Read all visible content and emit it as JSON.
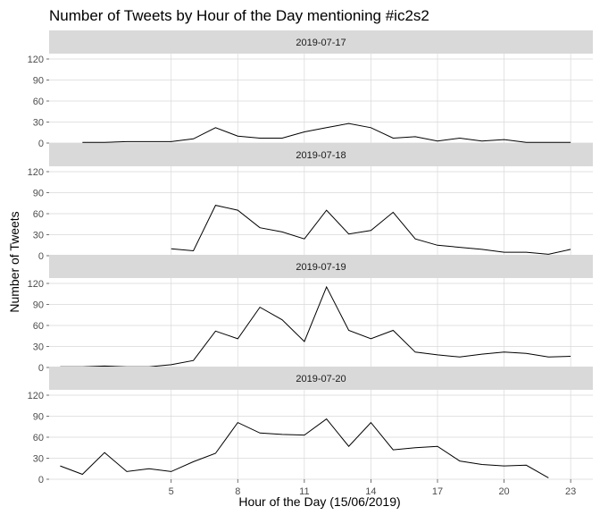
{
  "chart_data": {
    "type": "line",
    "title": "Number of Tweets by Hour of the Day mentioning #ic2s2",
    "xlabel": "Hour of the Day (15/06/2019)",
    "ylabel": "Number of Tweets",
    "xlim": [
      -0.5,
      24
    ],
    "ylim": [
      0,
      120
    ],
    "xticks": [
      5,
      8,
      11,
      14,
      17,
      20,
      23
    ],
    "yticks": [
      0,
      30,
      60,
      90,
      120
    ],
    "grid": true,
    "legend": "none",
    "panels": [
      {
        "label": "2019-07-17",
        "x": [
          1,
          2,
          3,
          4,
          5,
          6,
          7,
          8,
          9,
          10,
          11,
          12,
          13,
          14,
          15,
          16,
          17,
          18,
          19,
          20,
          21,
          22,
          23
        ],
        "y": [
          1,
          1,
          2,
          2,
          2,
          6,
          22,
          10,
          7,
          7,
          16,
          22,
          28,
          22,
          7,
          9,
          3,
          7,
          3,
          5,
          1,
          1,
          1
        ]
      },
      {
        "label": "2019-07-18",
        "x": [
          5,
          6,
          7,
          8,
          9,
          10,
          11,
          12,
          13,
          14,
          15,
          16,
          17,
          18,
          19,
          20,
          21,
          22,
          23
        ],
        "y": [
          10,
          7,
          72,
          65,
          40,
          34,
          24,
          65,
          31,
          36,
          62,
          24,
          15,
          12,
          9,
          5,
          5,
          2,
          9
        ]
      },
      {
        "label": "2019-07-19",
        "x": [
          0,
          1,
          2,
          3,
          4,
          5,
          6,
          7,
          8,
          9,
          10,
          11,
          12,
          13,
          14,
          15,
          16,
          17,
          18,
          19,
          20,
          21,
          22,
          23
        ],
        "y": [
          1,
          1,
          2,
          1,
          1,
          4,
          10,
          52,
          41,
          86,
          68,
          37,
          115,
          53,
          41,
          53,
          22,
          18,
          15,
          19,
          22,
          20,
          15,
          16
        ]
      },
      {
        "label": "2019-07-20",
        "x": [
          0,
          1,
          2,
          3,
          4,
          5,
          6,
          7,
          8,
          9,
          10,
          11,
          12,
          13,
          14,
          15,
          16,
          17,
          18,
          19,
          20,
          21,
          22
        ],
        "y": [
          19,
          7,
          38,
          11,
          15,
          11,
          25,
          37,
          81,
          66,
          64,
          63,
          86,
          47,
          81,
          42,
          45,
          47,
          26,
          21,
          19,
          20,
          2
        ]
      }
    ]
  }
}
